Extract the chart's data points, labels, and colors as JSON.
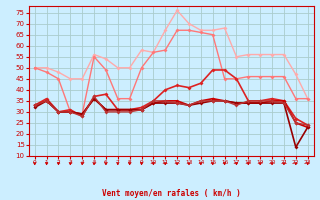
{
  "xlabel": "Vent moyen/en rafales ( km/h )",
  "bg_color": "#cceeff",
  "grid_color": "#aacccc",
  "x": [
    0,
    1,
    2,
    3,
    4,
    5,
    6,
    7,
    8,
    9,
    10,
    11,
    12,
    13,
    14,
    15,
    16,
    17,
    18,
    19,
    20,
    21,
    22,
    23
  ],
  "series": [
    {
      "name": "light_pink_top",
      "color": "#ffaaaa",
      "lw": 1.0,
      "marker": "D",
      "ms": 2.0,
      "y": [
        50,
        50,
        48,
        45,
        45,
        56,
        54,
        50,
        50,
        58,
        57,
        67,
        76,
        70,
        67,
        67,
        68,
        55,
        56,
        56,
        56,
        56,
        47,
        36
      ]
    },
    {
      "name": "mid_pink",
      "color": "#ff7777",
      "lw": 1.0,
      "marker": "D",
      "ms": 2.0,
      "y": [
        50,
        48,
        45,
        30,
        29,
        55,
        49,
        36,
        36,
        50,
        57,
        58,
        67,
        67,
        66,
        65,
        45,
        45,
        46,
        46,
        46,
        46,
        36,
        36
      ]
    },
    {
      "name": "dark_red_main",
      "color": "#dd2222",
      "lw": 1.2,
      "marker": "D",
      "ms": 2.0,
      "y": [
        33,
        36,
        30,
        31,
        28,
        37,
        38,
        31,
        31,
        32,
        35,
        40,
        42,
        41,
        43,
        49,
        49,
        45,
        35,
        35,
        36,
        35,
        27,
        24
      ]
    },
    {
      "name": "dark_red2",
      "color": "#cc0000",
      "lw": 1.2,
      "marker": "D",
      "ms": 2.0,
      "y": [
        33,
        35,
        30,
        30,
        29,
        36,
        31,
        31,
        31,
        31,
        34,
        35,
        35,
        33,
        35,
        36,
        35,
        34,
        34,
        34,
        35,
        35,
        25,
        23
      ]
    },
    {
      "name": "darkest_red",
      "color": "#990000",
      "lw": 1.2,
      "marker": "D",
      "ms": 2.0,
      "y": [
        32,
        35,
        30,
        30,
        29,
        36,
        31,
        31,
        31,
        31,
        34,
        34,
        34,
        33,
        34,
        35,
        35,
        34,
        34,
        34,
        34,
        34,
        14,
        23
      ]
    },
    {
      "name": "flat_line",
      "color": "#bb3333",
      "lw": 1.0,
      "marker": "D",
      "ms": 2.0,
      "y": [
        33,
        35,
        30,
        30,
        28,
        37,
        30,
        30,
        30,
        31,
        35,
        35,
        34,
        33,
        35,
        35,
        35,
        33,
        35,
        35,
        35,
        34,
        25,
        24
      ]
    }
  ],
  "ylim": [
    10,
    78
  ],
  "yticks": [
    10,
    15,
    20,
    25,
    30,
    35,
    40,
    45,
    50,
    55,
    60,
    65,
    70,
    75
  ],
  "xticks": [
    0,
    1,
    2,
    3,
    4,
    5,
    6,
    7,
    8,
    9,
    10,
    11,
    12,
    13,
    14,
    15,
    16,
    17,
    18,
    19,
    20,
    21,
    22,
    23
  ],
  "arrow_color": "#cc0000",
  "tick_color": "#cc0000",
  "label_color": "#cc0000",
  "spine_color": "#cc0000"
}
